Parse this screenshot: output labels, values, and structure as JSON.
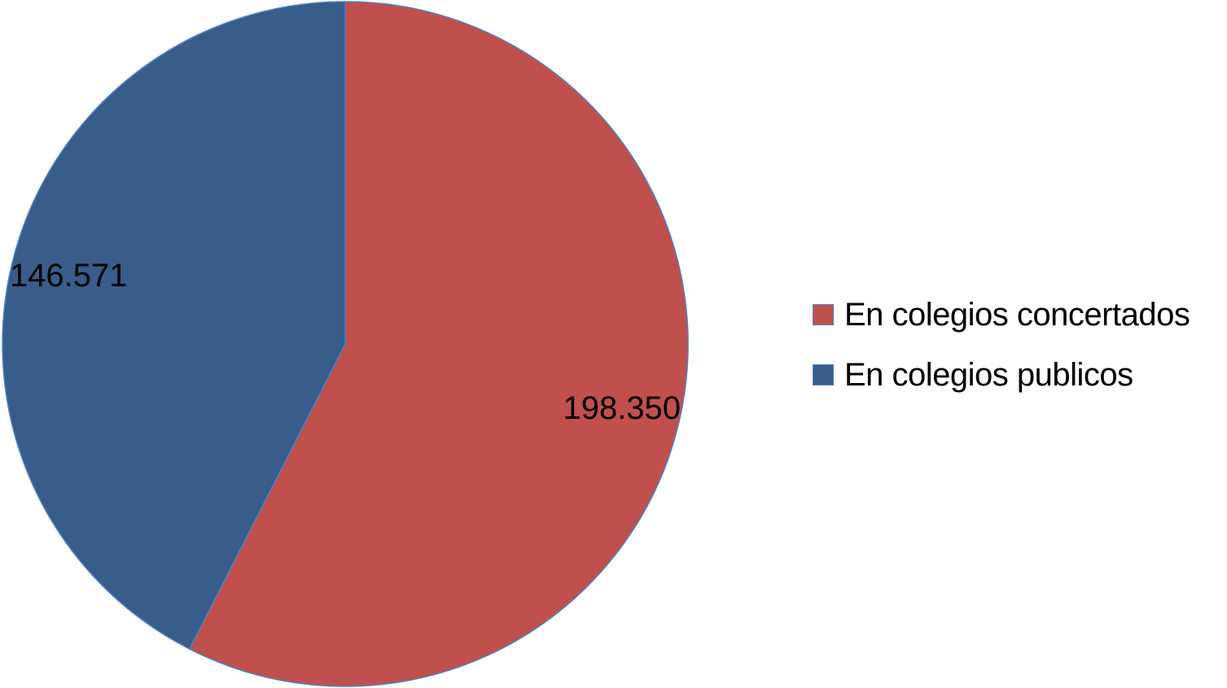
{
  "chart_data": {
    "type": "pie",
    "slices": [
      {
        "name": "En colegios concertados",
        "value": 198350,
        "label": "198.350",
        "color": "#c0504d"
      },
      {
        "name": "En colegios publicos",
        "value": 146571,
        "label": "146.571",
        "color": "#385d8a"
      }
    ],
    "start_angle_deg": 0,
    "direction": "clockwise",
    "legend_position": "right",
    "legend": [
      {
        "label": "En colegios concertados",
        "color": "#c0504d"
      },
      {
        "label": "En colegios publicos",
        "color": "#385d8a"
      }
    ],
    "title": ""
  }
}
